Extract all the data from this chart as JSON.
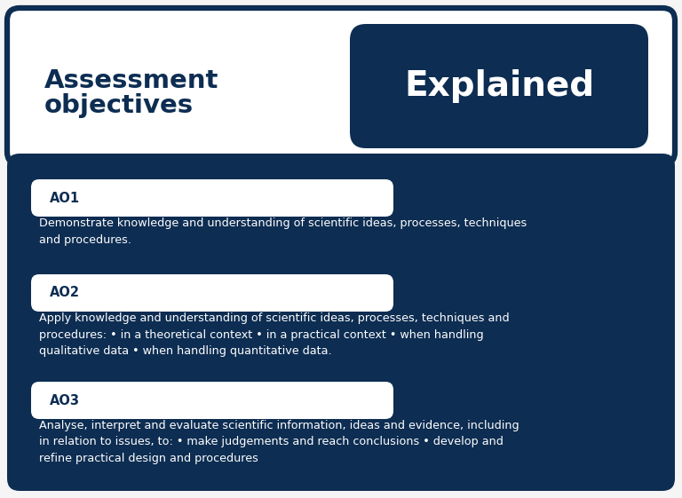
{
  "bg_color": "#f5f5f5",
  "dark_blue": "#0d2d52",
  "header_title_line1": "Assessment",
  "header_title_line2": "objectives",
  "header_badge": "Explained",
  "ao_labels": [
    "AO1",
    "AO2",
    "AO3"
  ],
  "ao_texts": [
    "Demonstrate knowledge and understanding of scientific ideas, processes, techniques\nand procedures.",
    "Apply knowledge and understanding of scientific ideas, processes, techniques and\nprocedures: • in a theoretical context • in a practical context • when handling\nqualitative data • when handling quantitative data.",
    "Analyse, interpret and evaluate scientific information, ideas and evidence, including\nin relation to issues, to: • make judgements and reach conclusions • develop and\nrefine practical design and procedures"
  ],
  "header_box_color": "#ffffff",
  "header_border_color": "#0d2d52",
  "main_box_color": "#0d2d52",
  "label_box_color": "#ffffff",
  "label_text_color": "#0d2d52",
  "body_text_color": "#ffffff",
  "explained_bg": "#0d2d52",
  "explained_text_color": "#ffffff"
}
